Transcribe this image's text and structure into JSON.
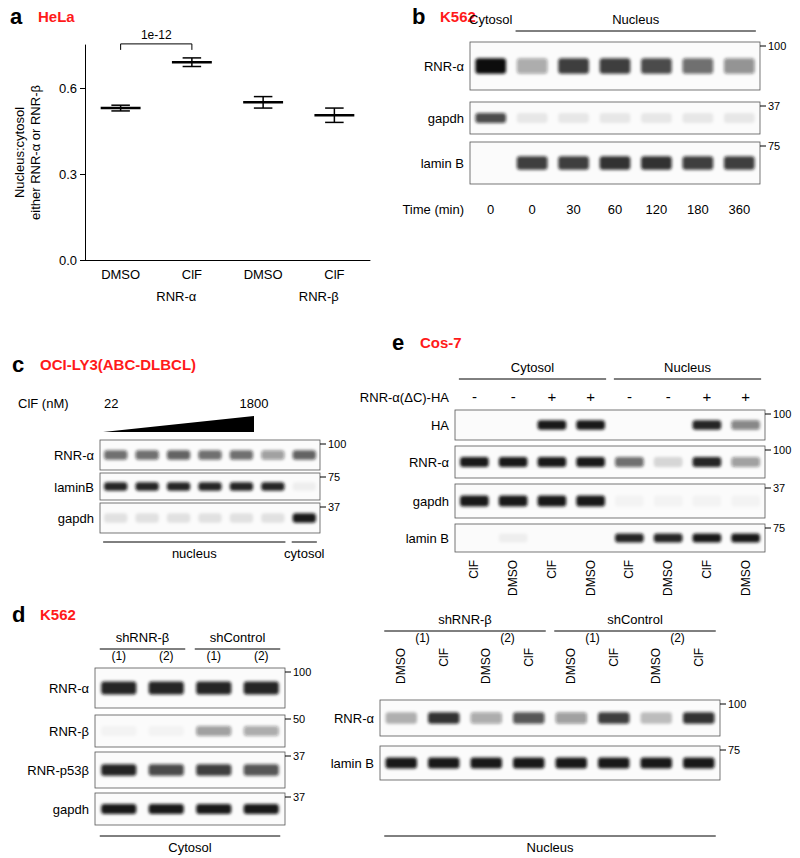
{
  "chart_data": {
    "type": "dot_errorbar",
    "ylabel": "Nucleus:cytosol\neither RNR-α or RNR-β",
    "categories": [
      "DMSO",
      "ClF",
      "DMSO",
      "ClF"
    ],
    "groups": [
      {
        "label": "RNR-α",
        "categories": [
          0,
          1
        ]
      },
      {
        "label": "RNR-β",
        "categories": [
          2,
          3
        ]
      }
    ],
    "values": [
      0.53,
      0.69,
      0.55,
      0.505
    ],
    "errors": [
      0.01,
      0.015,
      0.02,
      0.025
    ],
    "ylim": [
      0,
      0.75
    ],
    "yticks": [
      {
        "value": 0,
        "label": "0.0"
      },
      0.3,
      0.6
    ],
    "annotations": [
      {
        "text": "1e-12",
        "between": [
          0,
          1
        ]
      }
    ],
    "color": "#000000",
    "marker": "hline",
    "grid": false
  },
  "panel_a": {
    "letter": "a",
    "cell_line": "HeLa"
  },
  "panel_b": {
    "letter": "b",
    "cell_line": "K562",
    "blots": [
      {
        "lanes": 7,
        "top_groups": [
          {
            "label": "Cytosol",
            "lanes": [
              0,
              0
            ]
          },
          {
            "label": "Nucleus",
            "lanes": [
              1,
              6
            ]
          }
        ],
        "rows": [
          {
            "label": "RNR-α",
            "marker": 100,
            "intensity": [
              1,
              0.35,
              0.8,
              0.8,
              0.75,
              0.6,
              0.45
            ]
          },
          {
            "label": "gapdh",
            "marker": 37,
            "intensity": [
              0.75,
              0.08,
              0.08,
              0.08,
              0.08,
              0.08,
              0.08
            ]
          },
          {
            "label": "lamin B",
            "marker": 75,
            "intensity": [
              0,
              0.8,
              0.8,
              0.85,
              0.85,
              0.8,
              0.8
            ]
          }
        ],
        "bottom_row": {
          "label": "Time (min)",
          "values": [
            0,
            0,
            30,
            60,
            120,
            180,
            360
          ]
        }
      }
    ]
  },
  "panel_c": {
    "letter": "c",
    "cell_line": "OCI-LY3(ABC-DLBCL)",
    "blots": [
      {
        "lanes": 7,
        "treatment": {
          "label": "ClF (nM)",
          "from": 22,
          "to": 1800,
          "lanes": [
            0,
            4
          ]
        },
        "rows": [
          {
            "label": "RNR-α",
            "marker": 100,
            "intensity": [
              0.6,
              0.6,
              0.65,
              0.6,
              0.6,
              0.4,
              0.65
            ]
          },
          {
            "label": "laminB",
            "marker": 75,
            "intensity": [
              0.9,
              0.9,
              0.9,
              0.9,
              0.9,
              0.9,
              0.05
            ]
          },
          {
            "label": "gapdh",
            "marker": 37,
            "intensity": [
              0.1,
              0.1,
              0.1,
              0.1,
              0.1,
              0.1,
              0.95
            ]
          }
        ],
        "bottom_groups": [
          {
            "label": "nucleus",
            "lanes": [
              0,
              5
            ]
          },
          {
            "label": "cytosol",
            "lanes": [
              6,
              6
            ]
          }
        ]
      }
    ]
  },
  "panel_d": {
    "letter": "d",
    "cell_line": "K562",
    "blots": [
      {
        "lanes": 4,
        "top_groups": [
          {
            "label": "shRNR-β",
            "lanes": [
              0,
              1
            ]
          },
          {
            "label": "shControl",
            "lanes": [
              2,
              3
            ]
          }
        ],
        "sub_labels": [
          {
            "label": "(1)",
            "lanes": [
              0,
              0
            ]
          },
          {
            "label": "(2)",
            "lanes": [
              1,
              1
            ]
          },
          {
            "label": "(1)",
            "lanes": [
              2,
              2
            ]
          },
          {
            "label": "(2)",
            "lanes": [
              3,
              3
            ]
          }
        ],
        "rows": [
          {
            "label": "RNR-α",
            "marker": 100,
            "intensity": [
              0.9,
              0.9,
              0.9,
              0.9
            ]
          },
          {
            "label": "RNR-β",
            "marker": 50,
            "intensity": [
              0.03,
              0.03,
              0.4,
              0.35
            ]
          },
          {
            "label": "RNR-p53β",
            "marker": 37,
            "intensity": [
              0.9,
              0.75,
              0.8,
              0.7
            ]
          },
          {
            "label": "gapdh",
            "marker": 37,
            "intensity": [
              0.95,
              0.95,
              0.95,
              0.95
            ]
          }
        ],
        "bottom_groups": [
          {
            "label": "Cytosol",
            "lanes": [
              0,
              3
            ]
          }
        ]
      },
      {
        "lanes": 8,
        "top_groups": [
          {
            "label": "shRNR-β",
            "lanes": [
              0,
              3
            ]
          },
          {
            "label": "shControl",
            "lanes": [
              4,
              7
            ]
          }
        ],
        "sub_labels": [
          {
            "label": "(1)",
            "lanes": [
              0,
              1
            ]
          },
          {
            "label": "(2)",
            "lanes": [
              2,
              3
            ]
          },
          {
            "label": "(1)",
            "lanes": [
              4,
              5
            ]
          },
          {
            "label": "(2)",
            "lanes": [
              6,
              7
            ]
          }
        ],
        "lane_labels": [
          "DMSO",
          "ClF",
          "DMSO",
          "ClF",
          "DMSO",
          "ClF",
          "DMSO",
          "ClF"
        ],
        "rows": [
          {
            "label": "RNR-α",
            "marker": 100,
            "intensity": [
              0.3,
              0.85,
              0.35,
              0.7,
              0.4,
              0.8,
              0.25,
              0.85
            ]
          },
          {
            "label": "lamin B",
            "marker": 75,
            "intensity": [
              0.95,
              0.95,
              0.95,
              0.95,
              0.95,
              0.95,
              0.95,
              0.95
            ]
          }
        ],
        "bottom_groups": [
          {
            "label": "Nucleus",
            "lanes": [
              0,
              7
            ]
          }
        ]
      }
    ]
  },
  "panel_e": {
    "letter": "e",
    "cell_line": "Cos-7",
    "blots": [
      {
        "lanes": 8,
        "top_groups": [
          {
            "label": "Cytosol",
            "lanes": [
              0,
              3
            ]
          },
          {
            "label": "Nucleus",
            "lanes": [
              4,
              7
            ]
          }
        ],
        "construct": {
          "label": "RNR-α(ΔC)-HA",
          "signs": [
            "-",
            "-",
            "+",
            "+",
            "-",
            "-",
            "+",
            "+"
          ]
        },
        "rows": [
          {
            "label": "HA",
            "marker": 100,
            "intensity": [
              0,
              0,
              0.95,
              0.95,
              0,
              0,
              0.9,
              0.5
            ]
          },
          {
            "label": "RNR-α",
            "marker": 100,
            "intensity": [
              0.95,
              0.95,
              0.95,
              0.95,
              0.6,
              0.15,
              0.9,
              0.4
            ]
          },
          {
            "label": "gapdh",
            "marker": 37,
            "intensity": [
              0.95,
              0.95,
              0.95,
              0.95,
              0.03,
              0.03,
              0.03,
              0.03
            ]
          },
          {
            "label": "lamin B",
            "marker": 75,
            "intensity": [
              0,
              0.05,
              0,
              0,
              0.9,
              0.9,
              0.95,
              0.95
            ]
          }
        ],
        "lane_labels": [
          "ClF",
          "DMSO",
          "ClF",
          "DMSO",
          "ClF",
          "DMSO",
          "ClF",
          "DMSO"
        ]
      }
    ]
  }
}
